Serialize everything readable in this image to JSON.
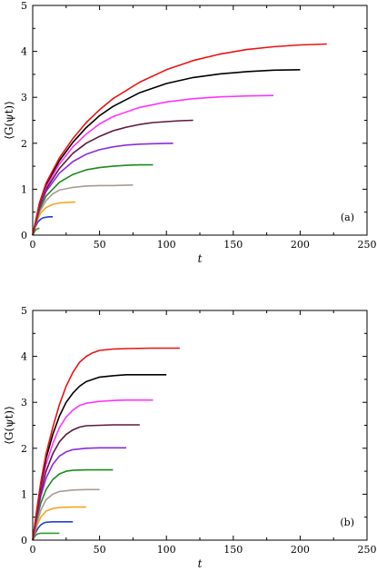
{
  "chart_data": [
    {
      "type": "line",
      "panel_label": "(a)",
      "xlabel": "t",
      "ylabel": "⟨G(ψt)⟩",
      "xlim": [
        0,
        250
      ],
      "ylim": [
        0,
        5
      ],
      "xticks": [
        "0",
        "50",
        "100",
        "150",
        "200",
        "250"
      ],
      "yticks": [
        "0",
        "1",
        "2",
        "3",
        "4",
        "5"
      ],
      "series": [
        {
          "color": "#2ca02c",
          "points": [
            [
              0,
              0
            ],
            [
              1,
              0.06
            ],
            [
              2,
              0.1
            ],
            [
              3,
              0.13
            ],
            [
              4,
              0.14
            ],
            [
              5,
              0.15
            ]
          ]
        },
        {
          "color": "#1f3fd8",
          "points": [
            [
              0,
              0
            ],
            [
              2,
              0.18
            ],
            [
              4,
              0.29
            ],
            [
              6,
              0.35
            ],
            [
              8,
              0.38
            ],
            [
              10,
              0.39
            ],
            [
              12,
              0.4
            ],
            [
              15,
              0.4
            ]
          ]
        },
        {
          "color": "#f5a623",
          "points": [
            [
              0,
              0
            ],
            [
              3,
              0.3
            ],
            [
              6,
              0.48
            ],
            [
              10,
              0.6
            ],
            [
              15,
              0.67
            ],
            [
              20,
              0.7
            ],
            [
              25,
              0.71
            ],
            [
              32,
              0.72
            ]
          ]
        },
        {
          "color": "#a89a94",
          "points": [
            [
              0,
              0
            ],
            [
              5,
              0.5
            ],
            [
              10,
              0.75
            ],
            [
              15,
              0.9
            ],
            [
              20,
              0.98
            ],
            [
              30,
              1.04
            ],
            [
              40,
              1.07
            ],
            [
              50,
              1.08
            ],
            [
              60,
              1.08
            ],
            [
              75,
              1.09
            ]
          ]
        },
        {
          "color": "#1a8c1a",
          "points": [
            [
              0,
              0
            ],
            [
              5,
              0.55
            ],
            [
              10,
              0.85
            ],
            [
              20,
              1.15
            ],
            [
              30,
              1.32
            ],
            [
              40,
              1.42
            ],
            [
              50,
              1.47
            ],
            [
              60,
              1.5
            ],
            [
              70,
              1.52
            ],
            [
              80,
              1.53
            ],
            [
              90,
              1.53
            ]
          ]
        },
        {
          "color": "#8a2be2",
          "points": [
            [
              0,
              0
            ],
            [
              5,
              0.6
            ],
            [
              10,
              0.95
            ],
            [
              20,
              1.35
            ],
            [
              30,
              1.6
            ],
            [
              40,
              1.76
            ],
            [
              50,
              1.86
            ],
            [
              60,
              1.92
            ],
            [
              70,
              1.96
            ],
            [
              80,
              1.98
            ],
            [
              90,
              1.99
            ],
            [
              105,
              2.0
            ]
          ]
        },
        {
          "color": "#5b1a3d",
          "points": [
            [
              0,
              0
            ],
            [
              5,
              0.62
            ],
            [
              10,
              1.0
            ],
            [
              20,
              1.45
            ],
            [
              30,
              1.78
            ],
            [
              40,
              2.0
            ],
            [
              50,
              2.15
            ],
            [
              60,
              2.27
            ],
            [
              70,
              2.35
            ],
            [
              80,
              2.41
            ],
            [
              90,
              2.45
            ],
            [
              100,
              2.47
            ],
            [
              110,
              2.49
            ],
            [
              120,
              2.5
            ]
          ]
        },
        {
          "color": "#ff33ff",
          "points": [
            [
              0,
              0
            ],
            [
              5,
              0.66
            ],
            [
              10,
              1.05
            ],
            [
              20,
              1.55
            ],
            [
              30,
              1.92
            ],
            [
              40,
              2.2
            ],
            [
              50,
              2.42
            ],
            [
              60,
              2.58
            ],
            [
              80,
              2.78
            ],
            [
              100,
              2.9
            ],
            [
              120,
              2.97
            ],
            [
              140,
              3.01
            ],
            [
              160,
              3.03
            ],
            [
              180,
              3.04
            ]
          ]
        },
        {
          "color": "#000000",
          "points": [
            [
              0,
              0
            ],
            [
              5,
              0.68
            ],
            [
              10,
              1.1
            ],
            [
              20,
              1.62
            ],
            [
              30,
              2.02
            ],
            [
              40,
              2.34
            ],
            [
              50,
              2.6
            ],
            [
              60,
              2.8
            ],
            [
              80,
              3.1
            ],
            [
              100,
              3.3
            ],
            [
              120,
              3.43
            ],
            [
              140,
              3.51
            ],
            [
              160,
              3.56
            ],
            [
              180,
              3.59
            ],
            [
              200,
              3.6
            ]
          ]
        },
        {
          "color": "#ee1111",
          "points": [
            [
              0,
              0
            ],
            [
              5,
              0.7
            ],
            [
              10,
              1.13
            ],
            [
              20,
              1.68
            ],
            [
              30,
              2.1
            ],
            [
              40,
              2.45
            ],
            [
              50,
              2.73
            ],
            [
              60,
              2.97
            ],
            [
              80,
              3.33
            ],
            [
              100,
              3.6
            ],
            [
              120,
              3.8
            ],
            [
              140,
              3.94
            ],
            [
              160,
              4.04
            ],
            [
              180,
              4.1
            ],
            [
              200,
              4.14
            ],
            [
              220,
              4.16
            ]
          ]
        }
      ]
    },
    {
      "type": "line",
      "panel_label": "(b)",
      "xlabel": "t",
      "ylabel": "⟨G(ψt)⟩",
      "xlim": [
        0,
        250
      ],
      "ylim": [
        0,
        5
      ],
      "xticks": [
        "0",
        "50",
        "100",
        "150",
        "200",
        "250"
      ],
      "yticks": [
        "0",
        "1",
        "2",
        "3",
        "4",
        "5"
      ],
      "series": [
        {
          "color": "#2ca02c",
          "points": [
            [
              0,
              0
            ],
            [
              2,
              0.1
            ],
            [
              4,
              0.14
            ],
            [
              6,
              0.15
            ],
            [
              10,
              0.15
            ],
            [
              15,
              0.15
            ],
            [
              20,
              0.15
            ]
          ]
        },
        {
          "color": "#1f3fd8",
          "points": [
            [
              0,
              0
            ],
            [
              2,
              0.15
            ],
            [
              4,
              0.26
            ],
            [
              6,
              0.33
            ],
            [
              8,
              0.37
            ],
            [
              10,
              0.39
            ],
            [
              15,
              0.4
            ],
            [
              20,
              0.4
            ],
            [
              30,
              0.4
            ]
          ]
        },
        {
          "color": "#f5a623",
          "points": [
            [
              0,
              0
            ],
            [
              3,
              0.3
            ],
            [
              6,
              0.5
            ],
            [
              10,
              0.63
            ],
            [
              15,
              0.69
            ],
            [
              20,
              0.71
            ],
            [
              30,
              0.72
            ],
            [
              40,
              0.72
            ]
          ]
        },
        {
          "color": "#a89a94",
          "points": [
            [
              0,
              0
            ],
            [
              3,
              0.35
            ],
            [
              6,
              0.65
            ],
            [
              10,
              0.88
            ],
            [
              15,
              1.0
            ],
            [
              20,
              1.06
            ],
            [
              30,
              1.09
            ],
            [
              40,
              1.1
            ],
            [
              50,
              1.1
            ]
          ]
        },
        {
          "color": "#1a8c1a",
          "points": [
            [
              0,
              0
            ],
            [
              3,
              0.45
            ],
            [
              6,
              0.8
            ],
            [
              10,
              1.1
            ],
            [
              15,
              1.32
            ],
            [
              20,
              1.44
            ],
            [
              25,
              1.5
            ],
            [
              30,
              1.52
            ],
            [
              40,
              1.53
            ],
            [
              60,
              1.53
            ]
          ]
        },
        {
          "color": "#8a2be2",
          "points": [
            [
              0,
              0
            ],
            [
              3,
              0.5
            ],
            [
              6,
              0.95
            ],
            [
              10,
              1.35
            ],
            [
              15,
              1.65
            ],
            [
              20,
              1.83
            ],
            [
              25,
              1.92
            ],
            [
              30,
              1.97
            ],
            [
              40,
              2.0
            ],
            [
              50,
              2.01
            ],
            [
              70,
              2.01
            ]
          ]
        },
        {
          "color": "#5b1a3d",
          "points": [
            [
              0,
              0
            ],
            [
              3,
              0.55
            ],
            [
              6,
              1.05
            ],
            [
              10,
              1.5
            ],
            [
              15,
              1.88
            ],
            [
              20,
              2.14
            ],
            [
              25,
              2.3
            ],
            [
              30,
              2.4
            ],
            [
              35,
              2.46
            ],
            [
              40,
              2.49
            ],
            [
              50,
              2.5
            ],
            [
              60,
              2.51
            ],
            [
              80,
              2.51
            ]
          ]
        },
        {
          "color": "#ff33ff",
          "points": [
            [
              0,
              0
            ],
            [
              3,
              0.6
            ],
            [
              6,
              1.15
            ],
            [
              10,
              1.65
            ],
            [
              15,
              2.1
            ],
            [
              20,
              2.45
            ],
            [
              25,
              2.68
            ],
            [
              30,
              2.83
            ],
            [
              35,
              2.93
            ],
            [
              40,
              2.98
            ],
            [
              50,
              3.02
            ],
            [
              60,
              3.04
            ],
            [
              70,
              3.05
            ],
            [
              90,
              3.05
            ]
          ]
        },
        {
          "color": "#000000",
          "points": [
            [
              0,
              0
            ],
            [
              3,
              0.62
            ],
            [
              6,
              1.2
            ],
            [
              10,
              1.78
            ],
            [
              15,
              2.3
            ],
            [
              20,
              2.7
            ],
            [
              25,
              3.0
            ],
            [
              30,
              3.2
            ],
            [
              35,
              3.35
            ],
            [
              40,
              3.45
            ],
            [
              50,
              3.55
            ],
            [
              60,
              3.58
            ],
            [
              70,
              3.6
            ],
            [
              85,
              3.6
            ],
            [
              100,
              3.6
            ]
          ]
        },
        {
          "color": "#ee1111",
          "points": [
            [
              0,
              0
            ],
            [
              3,
              0.65
            ],
            [
              6,
              1.25
            ],
            [
              10,
              1.88
            ],
            [
              15,
              2.45
            ],
            [
              20,
              2.95
            ],
            [
              25,
              3.35
            ],
            [
              30,
              3.65
            ],
            [
              35,
              3.87
            ],
            [
              40,
              4.0
            ],
            [
              45,
              4.08
            ],
            [
              50,
              4.13
            ],
            [
              60,
              4.16
            ],
            [
              70,
              4.17
            ],
            [
              90,
              4.18
            ],
            [
              110,
              4.18
            ]
          ]
        }
      ]
    }
  ]
}
